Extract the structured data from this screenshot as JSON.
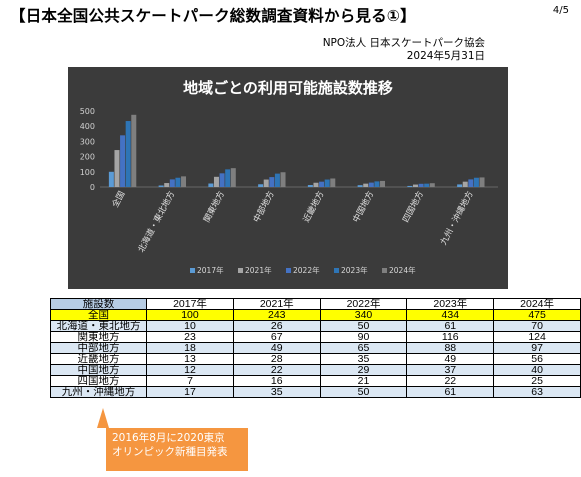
{
  "page": {
    "heading": "【日本全国公共スケートパーク総数調査資料から見る①】",
    "page_number": "4/5",
    "org_name": "NPO法人 日本スケートパーク協会",
    "date": "2024年5月31日"
  },
  "chart_data": {
    "type": "bar",
    "title": "地域ごとの利用可能施設数推移",
    "categories": [
      "全国",
      "北海道・東北地方",
      "関東地方",
      "中部地方",
      "近畿地方",
      "中国地方",
      "四国地方",
      "九州・沖縄地方"
    ],
    "series": [
      {
        "name": "2017年",
        "values": [
          100,
          10,
          23,
          18,
          13,
          12,
          7,
          17
        ],
        "color": "#5b9bd5"
      },
      {
        "name": "2021年",
        "values": [
          243,
          26,
          67,
          49,
          28,
          22,
          16,
          35
        ],
        "color": "#a5a5a5"
      },
      {
        "name": "2022年",
        "values": [
          340,
          50,
          90,
          65,
          35,
          29,
          21,
          50
        ],
        "color": "#4472c4"
      },
      {
        "name": "2023年",
        "values": [
          434,
          61,
          116,
          88,
          49,
          37,
          22,
          61
        ],
        "color": "#2e75b6"
      },
      {
        "name": "2024年",
        "values": [
          475,
          70,
          124,
          97,
          56,
          40,
          25,
          63
        ],
        "color": "#7f7f7f"
      }
    ],
    "yticks": [
      0,
      100,
      200,
      300,
      400,
      500
    ],
    "ylim": [
      0,
      500
    ],
    "grid": false,
    "legend_position": "bottom"
  },
  "table": {
    "corner": "施設数",
    "years": [
      "2017年",
      "2021年",
      "2022年",
      "2023年",
      "2024年"
    ],
    "rows": [
      {
        "region": "全国",
        "values": [
          "100",
          "243",
          "340",
          "434",
          "475"
        ],
        "style": "national"
      },
      {
        "region": "北海道・東北地方",
        "values": [
          "10",
          "26",
          "50",
          "61",
          "70"
        ],
        "style": "blue"
      },
      {
        "region": "関東地方",
        "values": [
          "23",
          "67",
          "90",
          "116",
          "124"
        ],
        "style": "white"
      },
      {
        "region": "中部地方",
        "values": [
          "18",
          "49",
          "65",
          "88",
          "97"
        ],
        "style": "blue"
      },
      {
        "region": "近畿地方",
        "values": [
          "13",
          "28",
          "35",
          "49",
          "56"
        ],
        "style": "white"
      },
      {
        "region": "中国地方",
        "values": [
          "12",
          "22",
          "29",
          "37",
          "40"
        ],
        "style": "blue"
      },
      {
        "region": "四国地方",
        "values": [
          "7",
          "16",
          "21",
          "22",
          "25"
        ],
        "style": "white"
      },
      {
        "region": "九州・沖縄地方",
        "values": [
          "17",
          "35",
          "50",
          "61",
          "63"
        ],
        "style": "blue"
      }
    ]
  },
  "callout": {
    "line1": "2016年8月に2020東京",
    "line2": "オリンピック新種目発表"
  }
}
